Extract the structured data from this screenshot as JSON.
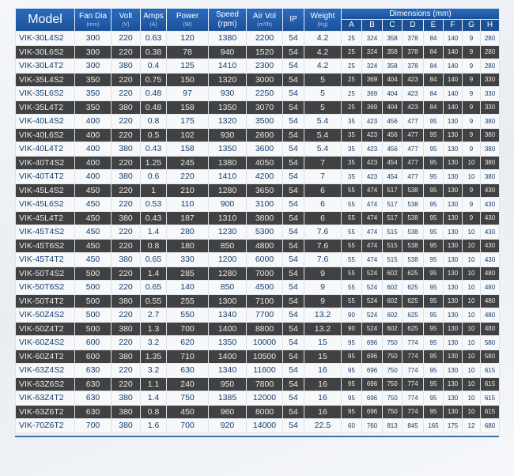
{
  "headers": {
    "model": "Model",
    "fan_dia": {
      "label": "Fan Dia",
      "unit": "(mm)"
    },
    "volt": {
      "label": "Volt",
      "unit": "(V)"
    },
    "amps": {
      "label": "Amps",
      "unit": "(A)"
    },
    "power": {
      "label": "Power",
      "unit": "(W)"
    },
    "speed": {
      "label": "Speed",
      "unit": "(rpm)"
    },
    "air_vol": {
      "label": "Air Vol",
      "unit": "(m³/h)"
    },
    "ip": "IP",
    "weight": {
      "label": "Weight",
      "unit": "(Kg)"
    },
    "dimensions": "Dimensions (mm)",
    "dim_letters": [
      "A",
      "B",
      "C",
      "D",
      "E",
      "F",
      "G",
      "H"
    ]
  },
  "colors": {
    "header": "#1f5aa6",
    "dark_row": "#404143",
    "light_row": "#f6f8fa",
    "light_text": "#143e6e"
  },
  "rows": [
    [
      "VIK-30L4S2",
      "300",
      "220",
      "0.63",
      "120",
      "1380",
      "2200",
      "54",
      "4.2",
      "25",
      "324",
      "358",
      "378",
      "84",
      "140",
      "9",
      "280"
    ],
    [
      "VIK-30L6S2",
      "300",
      "220",
      "0.38",
      "78",
      "940",
      "1520",
      "54",
      "4.2",
      "25",
      "324",
      "358",
      "378",
      "84",
      "140",
      "9",
      "280"
    ],
    [
      "VIK-30L4T2",
      "300",
      "380",
      "0.4",
      "125",
      "1410",
      "2300",
      "54",
      "4.2",
      "25",
      "324",
      "358",
      "378",
      "84",
      "140",
      "9",
      "280"
    ],
    [
      "VIK-35L4S2",
      "350",
      "220",
      "0.75",
      "150",
      "1320",
      "3000",
      "54",
      "5",
      "25",
      "369",
      "404",
      "423",
      "84",
      "140",
      "9",
      "330"
    ],
    [
      "VIK-35L6S2",
      "350",
      "220",
      "0.48",
      "97",
      "930",
      "2250",
      "54",
      "5",
      "25",
      "369",
      "404",
      "423",
      "84",
      "140",
      "9",
      "330"
    ],
    [
      "VIK-35L4T2",
      "350",
      "380",
      "0.48",
      "158",
      "1350",
      "3070",
      "54",
      "5",
      "25",
      "369",
      "404",
      "423",
      "84",
      "140",
      "9",
      "330"
    ],
    [
      "VIK-40L4S2",
      "400",
      "220",
      "0.8",
      "175",
      "1320",
      "3500",
      "54",
      "5.4",
      "35",
      "423",
      "456",
      "477",
      "95",
      "130",
      "9",
      "380"
    ],
    [
      "VIK-40L6S2",
      "400",
      "220",
      "0.5",
      "102",
      "930",
      "2600",
      "54",
      "5.4",
      "35",
      "423",
      "456",
      "477",
      "95",
      "130",
      "9",
      "380"
    ],
    [
      "VIK-40L4T2",
      "400",
      "380",
      "0.43",
      "158",
      "1350",
      "3600",
      "54",
      "5.4",
      "35",
      "423",
      "456",
      "477",
      "95",
      "130",
      "9",
      "380"
    ],
    [
      "VIK-40T4S2",
      "400",
      "220",
      "1.25",
      "245",
      "1380",
      "4050",
      "54",
      "7",
      "35",
      "423",
      "454",
      "477",
      "95",
      "130",
      "10",
      "380"
    ],
    [
      "VIK-40T4T2",
      "400",
      "380",
      "0.6",
      "220",
      "1410",
      "4200",
      "54",
      "7",
      "35",
      "423",
      "454",
      "477",
      "95",
      "130",
      "10",
      "380"
    ],
    [
      "VIK-45L4S2",
      "450",
      "220",
      "1",
      "210",
      "1280",
      "3650",
      "54",
      "6",
      "55",
      "474",
      "517",
      "538",
      "95",
      "130",
      "9",
      "430"
    ],
    [
      "VIK-45L6S2",
      "450",
      "220",
      "0.53",
      "110",
      "900",
      "3100",
      "54",
      "6",
      "55",
      "474",
      "517",
      "538",
      "95",
      "130",
      "9",
      "430"
    ],
    [
      "VIK-45L4T2",
      "450",
      "380",
      "0.43",
      "187",
      "1310",
      "3800",
      "54",
      "6",
      "55",
      "474",
      "517",
      "538",
      "95",
      "130",
      "9",
      "430"
    ],
    [
      "VIK-45T4S2",
      "450",
      "220",
      "1.4",
      "280",
      "1230",
      "5300",
      "54",
      "7.6",
      "55",
      "474",
      "515",
      "538",
      "95",
      "130",
      "10",
      "430"
    ],
    [
      "VIK-45T6S2",
      "450",
      "220",
      "0.8",
      "180",
      "850",
      "4800",
      "54",
      "7.6",
      "55",
      "474",
      "515",
      "538",
      "95",
      "130",
      "10",
      "430"
    ],
    [
      "VIK-45T4T2",
      "450",
      "380",
      "0.65",
      "330",
      "1200",
      "6000",
      "54",
      "7.6",
      "55",
      "474",
      "515",
      "538",
      "95",
      "130",
      "10",
      "430"
    ],
    [
      "VIK-50T4S2",
      "500",
      "220",
      "1.4",
      "285",
      "1280",
      "7000",
      "54",
      "9",
      "55",
      "524",
      "602",
      "625",
      "95",
      "130",
      "10",
      "480"
    ],
    [
      "VIK-50T6S2",
      "500",
      "220",
      "0.65",
      "140",
      "850",
      "4500",
      "54",
      "9",
      "55",
      "524",
      "602",
      "625",
      "95",
      "130",
      "10",
      "480"
    ],
    [
      "VIK-50T4T2",
      "500",
      "380",
      "0.55",
      "255",
      "1300",
      "7100",
      "54",
      "9",
      "55",
      "524",
      "602",
      "625",
      "95",
      "130",
      "10",
      "480"
    ],
    [
      "VIK-50Z4S2",
      "500",
      "220",
      "2.7",
      "550",
      "1340",
      "7700",
      "54",
      "13.2",
      "90",
      "524",
      "602",
      "625",
      "95",
      "130",
      "10",
      "480"
    ],
    [
      "VIK-50Z4T2",
      "500",
      "380",
      "1.3",
      "700",
      "1400",
      "8800",
      "54",
      "13.2",
      "90",
      "524",
      "602",
      "625",
      "95",
      "130",
      "10",
      "480"
    ],
    [
      "VIK-60Z4S2",
      "600",
      "220",
      "3.2",
      "620",
      "1350",
      "10000",
      "54",
      "15",
      "95",
      "696",
      "750",
      "774",
      "95",
      "130",
      "10",
      "580"
    ],
    [
      "VIK-60Z4T2",
      "600",
      "380",
      "1.35",
      "710",
      "1400",
      "10500",
      "54",
      "15",
      "95",
      "696",
      "750",
      "774",
      "95",
      "130",
      "10",
      "580"
    ],
    [
      "VIK-63Z4S2",
      "630",
      "220",
      "3.2",
      "630",
      "1340",
      "11600",
      "54",
      "16",
      "95",
      "696",
      "750",
      "774",
      "95",
      "130",
      "10",
      "615"
    ],
    [
      "VIK-63Z6S2",
      "630",
      "220",
      "1.1",
      "240",
      "950",
      "7800",
      "54",
      "16",
      "95",
      "696",
      "750",
      "774",
      "95",
      "130",
      "10",
      "615"
    ],
    [
      "VIK-63Z4T2",
      "630",
      "380",
      "1.4",
      "750",
      "1385",
      "12000",
      "54",
      "16",
      "95",
      "696",
      "750",
      "774",
      "95",
      "130",
      "10",
      "615"
    ],
    [
      "VIK-63Z6T2",
      "630",
      "380",
      "0.8",
      "450",
      "960",
      "8000",
      "54",
      "16",
      "95",
      "696",
      "750",
      "774",
      "95",
      "130",
      "10",
      "615"
    ],
    [
      "VIK-70Z6T2",
      "700",
      "380",
      "1.6",
      "700",
      "920",
      "14000",
      "54",
      "22.5",
      "60",
      "760",
      "813",
      "845",
      "165",
      "175",
      "12",
      "680"
    ]
  ]
}
